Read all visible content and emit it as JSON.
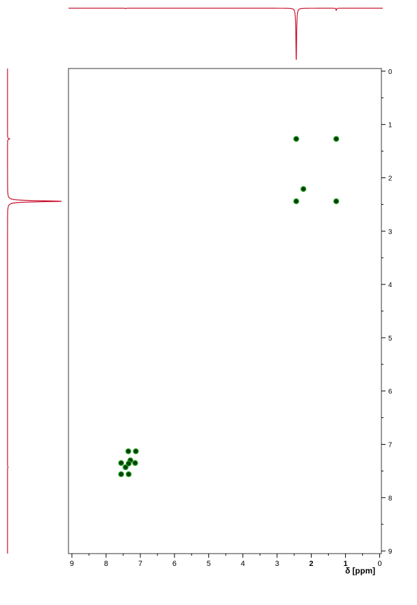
{
  "chart_data": {
    "type": "scatter",
    "title": "",
    "xlabel": "δ [ppm]",
    "ylabel": "",
    "xlim": [
      9.1,
      -0.05
    ],
    "ylim": [
      -0.05,
      9.05
    ],
    "x_ticks": [
      9,
      8,
      7,
      6,
      5,
      4,
      3,
      2,
      1,
      0
    ],
    "y_ticks": [
      0,
      1,
      2,
      3,
      4,
      5,
      6,
      7,
      8,
      9
    ],
    "grid": false,
    "colors": {
      "frame": "#555555",
      "spectrum": "#c8102e",
      "peak_fill": "#0a3d0a",
      "peak_edge": "#1fa01f"
    },
    "cross_peaks": [
      {
        "x": 2.44,
        "y": 1.27
      },
      {
        "x": 1.27,
        "y": 1.27
      },
      {
        "x": 2.23,
        "y": 2.21
      },
      {
        "x": 2.44,
        "y": 2.44
      },
      {
        "x": 1.27,
        "y": 2.44
      },
      {
        "x": 7.35,
        "y": 7.13
      },
      {
        "x": 7.13,
        "y": 7.13
      },
      {
        "x": 7.29,
        "y": 7.3
      },
      {
        "x": 7.56,
        "y": 7.35
      },
      {
        "x": 7.34,
        "y": 7.36
      },
      {
        "x": 7.15,
        "y": 7.35
      },
      {
        "x": 7.43,
        "y": 7.43
      },
      {
        "x": 7.56,
        "y": 7.56
      },
      {
        "x": 7.34,
        "y": 7.56
      }
    ],
    "projection_peaks": [
      {
        "ppm": 2.44,
        "intensity": 1.0
      },
      {
        "ppm": 1.27,
        "intensity": 0.04
      },
      {
        "ppm": 7.43,
        "intensity": 0.01
      }
    ]
  }
}
